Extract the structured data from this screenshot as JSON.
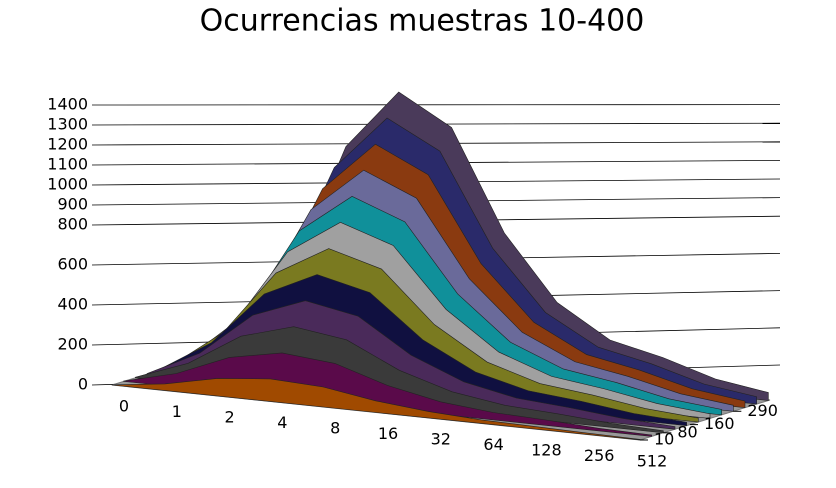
{
  "chart_data": {
    "type": "area3d",
    "title": "Ocurrencias muestras 10-400",
    "categories": [
      "0",
      "1",
      "2",
      "4",
      "8",
      "16",
      "32",
      "64",
      "128",
      "256",
      "512"
    ],
    "zlim": [
      10,
      400
    ],
    "zticks": [
      10,
      80,
      160,
      290
    ],
    "ylim": [
      0,
      1400
    ],
    "yticks": [
      0,
      200,
      400,
      600,
      800,
      900,
      1000,
      1100,
      1200,
      1300,
      1400
    ],
    "grid": true,
    "series": [
      {
        "z": 10,
        "color": "#a04a00",
        "values": [
          1,
          33,
          88,
          113,
          100,
          58,
          32,
          18,
          13,
          7,
          3
        ]
      },
      {
        "z": 45,
        "color": "#5a0a4a",
        "values": [
          2,
          67,
          175,
          225,
          200,
          117,
          63,
          37,
          27,
          13,
          7
        ]
      },
      {
        "z": 80,
        "color": "#3a3a3a",
        "values": [
          3,
          100,
          263,
          338,
          300,
          175,
          95,
          55,
          40,
          20,
          10
        ]
      },
      {
        "z": 115,
        "color": "#4a2a5a",
        "values": [
          3,
          133,
          350,
          450,
          400,
          233,
          127,
          73,
          53,
          27,
          13
        ]
      },
      {
        "z": 150,
        "color": "#101040",
        "values": [
          4,
          167,
          438,
          563,
          500,
          292,
          158,
          92,
          67,
          33,
          17
        ]
      },
      {
        "z": 185,
        "color": "#7a7a20",
        "values": [
          5,
          200,
          525,
          675,
          600,
          350,
          190,
          110,
          80,
          40,
          20
        ]
      },
      {
        "z": 220,
        "color": "#a0a0a0",
        "values": [
          6,
          233,
          613,
          788,
          700,
          408,
          222,
          128,
          93,
          47,
          23
        ]
      },
      {
        "z": 255,
        "color": "#10909a",
        "values": [
          7,
          267,
          700,
          900,
          800,
          467,
          253,
          147,
          107,
          53,
          27
        ]
      },
      {
        "z": 290,
        "color": "#6a6a9a",
        "values": [
          8,
          300,
          788,
          1013,
          900,
          525,
          285,
          165,
          120,
          60,
          30
        ]
      },
      {
        "z": 325,
        "color": "#8a3a10",
        "values": [
          8,
          333,
          875,
          1125,
          1000,
          583,
          317,
          183,
          133,
          67,
          33
        ]
      },
      {
        "z": 360,
        "color": "#2a2a6a",
        "values": [
          9,
          367,
          963,
          1238,
          1100,
          642,
          348,
          202,
          147,
          73,
          37
        ]
      },
      {
        "z": 395,
        "color": "#4a3a5a",
        "values": [
          10,
          400,
          1050,
          1350,
          1200,
          700,
          380,
          220,
          160,
          80,
          40
        ]
      }
    ]
  }
}
